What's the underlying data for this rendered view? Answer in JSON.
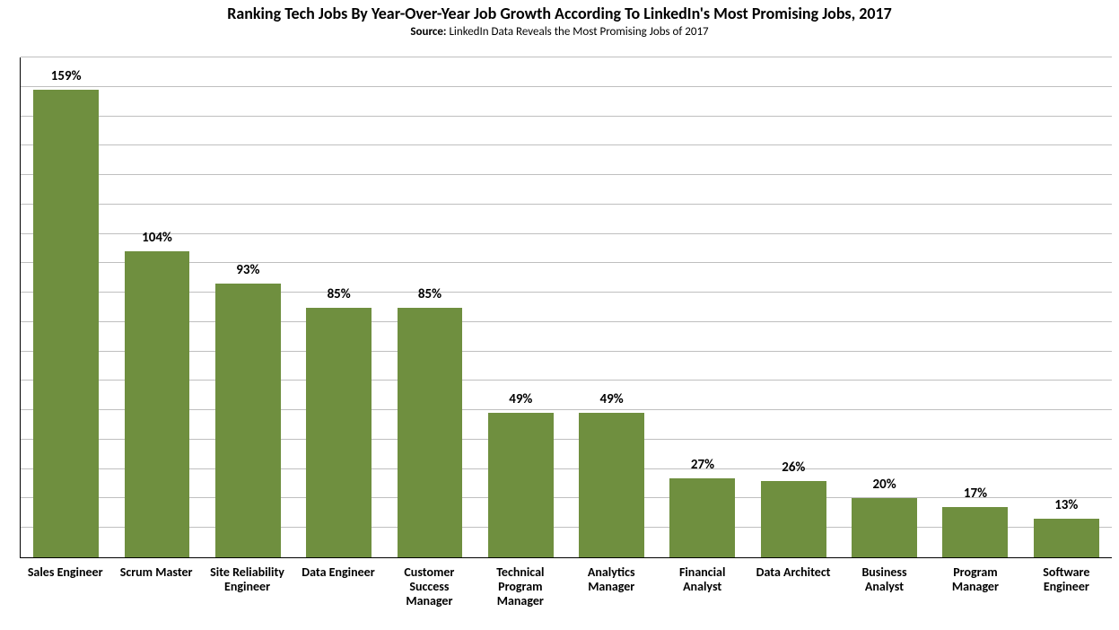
{
  "chart": {
    "type": "bar",
    "title": "Ranking Tech Jobs By Year-Over-Year Job Growth According To LinkedIn's Most Promising Jobs, 2017",
    "subtitle_label": "Source:",
    "subtitle_text": "LinkedIn Data Reveals the Most Promising Jobs of 2017",
    "title_fontsize": 18,
    "subtitle_fontsize": 13,
    "categories": [
      "Sales Engineer",
      "Scrum Master",
      "Site Reliability Engineer",
      "Data Engineer",
      "Customer Success Manager",
      "Technical Program Manager",
      "Analytics Manager",
      "Financial Analyst",
      "Data Architect",
      "Business Analyst",
      "Program Manager",
      "Software Engineer"
    ],
    "values": [
      159,
      104,
      93,
      85,
      85,
      49,
      49,
      27,
      26,
      20,
      17,
      13
    ],
    "value_suffix": "%",
    "bar_color": "#6f8f3f",
    "bar_width_pct": 72,
    "background_color": "#ffffff",
    "grid_color": "#bfbfbf",
    "axis_line_color": "#000000",
    "ylim": [
      0,
      170
    ],
    "gridline_step": 10,
    "data_label_fontsize": 15,
    "axis_label_fontsize": 14,
    "axis_label_color": "#000000",
    "data_label_color": "#000000",
    "title_color": "#000000"
  }
}
